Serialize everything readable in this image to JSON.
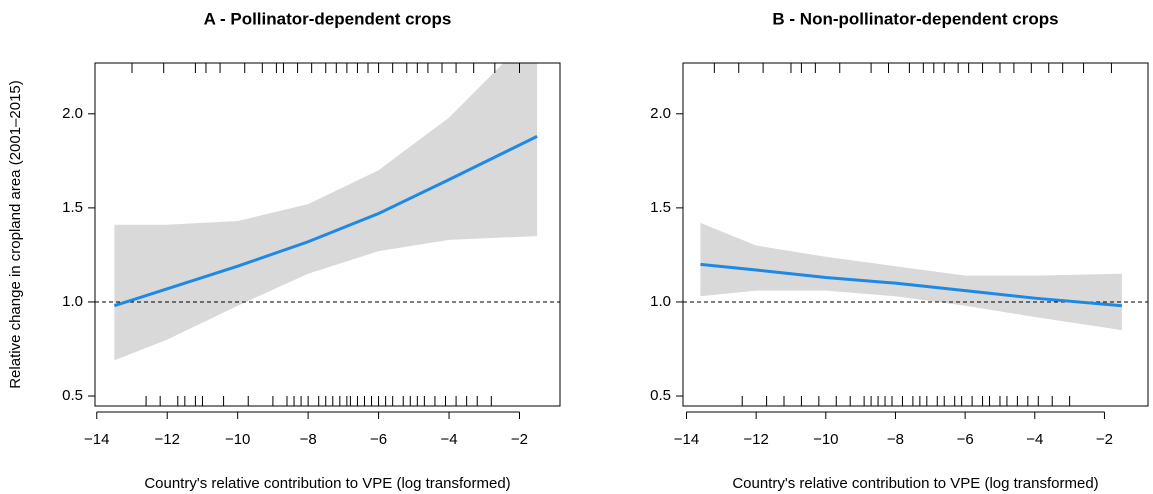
{
  "chart_data": [
    {
      "type": "line",
      "title": "A - Pollinator-dependent crops",
      "xlabel": "Country's relative contribution to VPE (log transformed)",
      "ylabel": "Relative change in cropland area (2001–2015)",
      "x": [
        -13.5,
        -12,
        -10,
        -8,
        -6,
        -4,
        -1.5
      ],
      "fit": {
        "color": "#1e88e5",
        "values": [
          0.98,
          1.07,
          1.19,
          1.32,
          1.47,
          1.65,
          1.88
        ]
      },
      "band": {
        "color": "#d9d9d9",
        "upper": [
          1.41,
          1.41,
          1.43,
          1.52,
          1.7,
          1.98,
          2.45
        ],
        "lower": [
          0.69,
          0.8,
          0.98,
          1.15,
          1.27,
          1.33,
          1.35
        ]
      },
      "reference_line": 1,
      "rug_top": [
        -13.0,
        -12.1,
        -11.2,
        -10.9,
        -10.5,
        -9.8,
        -9.3,
        -8.9,
        -8.7,
        -8.3,
        -7.9,
        -7.5,
        -7.2,
        -6.9,
        -6.6,
        -6.3,
        -6.0,
        -5.6,
        -5.2,
        -4.9,
        -4.6,
        -4.2,
        -3.8,
        -3.3,
        -2.7,
        -2.0
      ],
      "rug_bottom": [
        -12.6,
        -12.2,
        -11.7,
        -11.5,
        -11.2,
        -11.0,
        -10.4,
        -9.7,
        -9.0,
        -8.6,
        -8.4,
        -8.2,
        -8.0,
        -7.7,
        -7.5,
        -7.3,
        -7.1,
        -6.9,
        -6.8,
        -6.6,
        -6.4,
        -6.2,
        -6.0,
        -5.8,
        -5.6,
        -5.3,
        -5.1,
        -4.9,
        -4.7,
        -4.4,
        -4.1,
        -3.8,
        -3.5,
        -3.2,
        -2.8
      ],
      "xlim": [
        -14.05,
        -0.85
      ],
      "ylim": [
        0.447,
        2.27
      ],
      "xticks": [
        {
          "value": -14,
          "label": "−14"
        },
        {
          "value": -12,
          "label": "−12"
        },
        {
          "value": -10,
          "label": "−10"
        },
        {
          "value": -8,
          "label": "−8"
        },
        {
          "value": -6,
          "label": "−6"
        },
        {
          "value": -4,
          "label": "−4"
        },
        {
          "value": -2,
          "label": "−2"
        }
      ],
      "yticks": [
        0.5,
        {
          "value": 1,
          "label": "1.0"
        },
        1.5,
        {
          "value": 2,
          "label": "2.0"
        }
      ]
    },
    {
      "type": "line",
      "title": "B - Non-pollinator-dependent crops",
      "xlabel": "Country's relative contribution to VPE (log transformed)",
      "x": [
        -13.6,
        -12,
        -10,
        -8,
        -6,
        -4,
        -1.5
      ],
      "fit": {
        "color": "#1e88e5",
        "values": [
          1.2,
          1.17,
          1.13,
          1.1,
          1.06,
          1.02,
          0.98
        ]
      },
      "band": {
        "color": "#d9d9d9",
        "upper": [
          1.42,
          1.3,
          1.24,
          1.19,
          1.14,
          1.14,
          1.15
        ],
        "lower": [
          1.03,
          1.06,
          1.06,
          1.03,
          0.98,
          0.92,
          0.85
        ]
      },
      "reference_line": 1,
      "rug_top": [
        -13.2,
        -12.5,
        -11.8,
        -11.0,
        -10.7,
        -10.3,
        -9.6,
        -8.7,
        -8.2,
        -7.6,
        -7.2,
        -6.9,
        -6.6,
        -6.2,
        -5.9,
        -5.5,
        -5.0,
        -4.6,
        -4.1,
        -3.6,
        -3.2,
        -2.6,
        -1.8
      ],
      "rug_bottom": [
        -12.4,
        -11.7,
        -11.2,
        -10.7,
        -10.2,
        -9.7,
        -9.3,
        -8.9,
        -8.7,
        -8.5,
        -8.3,
        -8.1,
        -7.8,
        -7.5,
        -7.3,
        -7.1,
        -6.8,
        -6.6,
        -6.3,
        -6.1,
        -5.8,
        -5.5,
        -5.3,
        -5.0,
        -4.8,
        -4.5,
        -4.2,
        -3.9,
        -3.5,
        -3.0
      ],
      "xlim": [
        -14.1,
        -0.75
      ],
      "ylim": [
        0.447,
        2.27
      ],
      "xticks": [
        {
          "value": -14,
          "label": "−14"
        },
        {
          "value": -12,
          "label": "−12"
        },
        {
          "value": -10,
          "label": "−10"
        },
        {
          "value": -8,
          "label": "−8"
        },
        {
          "value": -6,
          "label": "−6"
        },
        {
          "value": -4,
          "label": "−4"
        },
        {
          "value": -2,
          "label": "−2"
        }
      ],
      "yticks": [
        0.5,
        {
          "value": 1,
          "label": "1.0"
        },
        1.5,
        {
          "value": 2,
          "label": "2.0"
        }
      ]
    }
  ]
}
